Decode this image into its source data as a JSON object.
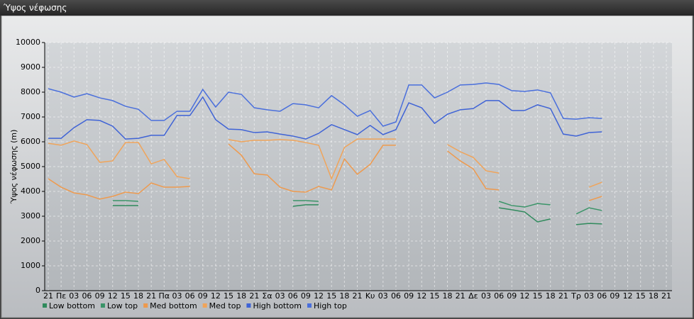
{
  "window": {
    "title": "Ύψος νέφωσης"
  },
  "chart_data": {
    "type": "line",
    "y_label": "Ύψος νέφωσης (m)",
    "categories": [
      "21",
      "Πε",
      "03",
      "06",
      "09",
      "12",
      "15",
      "18",
      "21",
      "Πα",
      "03",
      "06",
      "09",
      "12",
      "15",
      "18",
      "21",
      "Σα",
      "03",
      "06",
      "09",
      "12",
      "15",
      "18",
      "21",
      "Κυ",
      "03",
      "06",
      "09",
      "12",
      "15",
      "18",
      "21",
      "Δε",
      "03",
      "06",
      "09",
      "12",
      "15",
      "18",
      "21",
      "Τρ",
      "03",
      "06",
      "09",
      "12",
      "15",
      "18",
      "21"
    ],
    "ylim": [
      0,
      10000
    ],
    "yticks": [
      0,
      1000,
      2000,
      3000,
      4000,
      5000,
      6000,
      7000,
      8000,
      9000,
      10000
    ],
    "grid": true,
    "legend": "bottom",
    "series": [
      {
        "name": "Low bottom",
        "color": "#2f8a5c",
        "values": [
          null,
          null,
          null,
          null,
          null,
          3430,
          3430,
          3430,
          null,
          null,
          null,
          null,
          null,
          null,
          null,
          null,
          null,
          null,
          null,
          3400,
          3460,
          3460,
          null,
          null,
          null,
          null,
          null,
          null,
          null,
          null,
          null,
          null,
          null,
          null,
          null,
          3340,
          3260,
          3170,
          2770,
          2890,
          null,
          2660,
          2710,
          2690,
          null,
          null,
          null,
          null,
          null
        ]
      },
      {
        "name": "Low top",
        "color": "#3a9468",
        "values": [
          null,
          null,
          null,
          null,
          null,
          3630,
          3630,
          3600,
          null,
          null,
          null,
          null,
          null,
          null,
          null,
          null,
          null,
          null,
          null,
          3630,
          3630,
          3600,
          null,
          null,
          null,
          null,
          null,
          null,
          null,
          null,
          null,
          null,
          null,
          null,
          null,
          3600,
          3430,
          3370,
          3510,
          3460,
          null,
          3090,
          3340,
          3230,
          null,
          null,
          null,
          null,
          null
        ]
      },
      {
        "name": "Med bottom",
        "color": "#ee9a4e",
        "values": [
          4510,
          4170,
          3940,
          3860,
          3690,
          3800,
          3970,
          3910,
          4340,
          4170,
          4170,
          4200,
          null,
          null,
          5910,
          5460,
          4710,
          4660,
          4170,
          4000,
          3970,
          4200,
          4060,
          5310,
          4690,
          5090,
          5860,
          5860,
          null,
          null,
          null,
          5630,
          5230,
          4910,
          4110,
          4060,
          null,
          null,
          null,
          null,
          null,
          null,
          3630,
          3800,
          null,
          null,
          null,
          null,
          null
        ]
      },
      {
        "name": "Med top",
        "color": "#f0a45a",
        "values": [
          5940,
          5860,
          6030,
          5890,
          5170,
          5230,
          5970,
          5970,
          5110,
          5290,
          4600,
          4510,
          null,
          null,
          6090,
          6000,
          6060,
          6060,
          6090,
          6060,
          5970,
          5860,
          4510,
          5770,
          6110,
          6110,
          6110,
          6110,
          null,
          null,
          null,
          5890,
          5600,
          5370,
          4830,
          4740,
          null,
          null,
          null,
          null,
          null,
          null,
          4170,
          4370,
          null,
          null,
          null,
          null,
          null
        ]
      },
      {
        "name": "High bottom",
        "color": "#3f63d6",
        "values": [
          6140,
          6140,
          6570,
          6890,
          6860,
          6630,
          6110,
          6140,
          6260,
          6260,
          7060,
          7060,
          7800,
          6890,
          6510,
          6490,
          6370,
          6400,
          6310,
          6230,
          6110,
          6340,
          6690,
          6490,
          6290,
          6660,
          6290,
          6490,
          7570,
          7370,
          6740,
          7110,
          7290,
          7340,
          7660,
          7660,
          7260,
          7260,
          7490,
          7340,
          6310,
          6230,
          6370,
          6400,
          null,
          null,
          null,
          null,
          null
        ]
      },
      {
        "name": "High top",
        "color": "#4a6fdc",
        "values": [
          8140,
          8000,
          7800,
          7940,
          7770,
          7660,
          7430,
          7310,
          6860,
          6860,
          7230,
          7230,
          8110,
          7400,
          8000,
          7910,
          7370,
          7290,
          7230,
          7540,
          7490,
          7370,
          7860,
          7490,
          7030,
          7260,
          6630,
          6800,
          8290,
          8290,
          7770,
          8000,
          8290,
          8310,
          8370,
          8310,
          8060,
          8030,
          8090,
          7970,
          6940,
          6910,
          6970,
          6940,
          null,
          null,
          null,
          null,
          null
        ]
      }
    ]
  }
}
